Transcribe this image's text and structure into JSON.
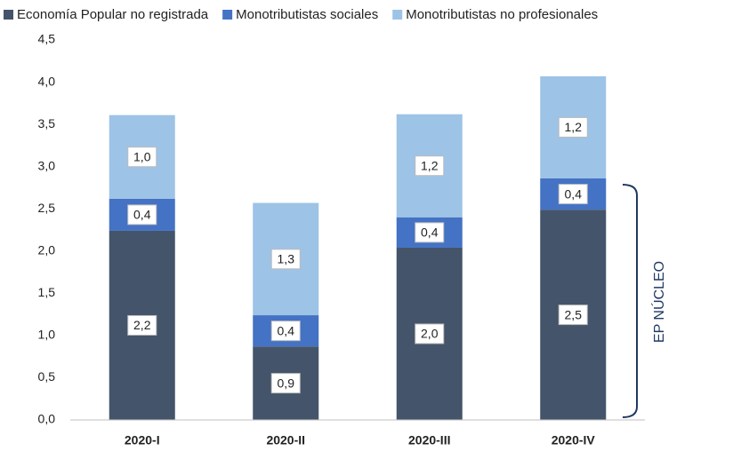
{
  "chart_data": {
    "type": "stacked_bar",
    "categories": [
      "2020-I",
      "2020-II",
      "2020-III",
      "2020-IV"
    ],
    "series": [
      {
        "name": "Economía Popular no registrada",
        "color": "#44546a",
        "values": [
          2.24,
          0.87,
          2.04,
          2.49
        ],
        "value_labels": [
          "2,2",
          "0,9",
          "2,0",
          "2,5"
        ]
      },
      {
        "name": "Monotributistas sociales",
        "color": "#4472c4",
        "values": [
          0.38,
          0.37,
          0.36,
          0.37
        ],
        "value_labels": [
          "0,4",
          "0,4",
          "0,4",
          "0,4"
        ]
      },
      {
        "name": "Monotributistas no profesionales",
        "color": "#9dc3e6",
        "values": [
          0.99,
          1.33,
          1.22,
          1.21
        ],
        "value_labels": [
          "1,0",
          "1,3",
          "1,2",
          "1,2"
        ]
      }
    ],
    "ylim": [
      0,
      4.5
    ],
    "yticks": [
      {
        "value": 0,
        "label": "0,0"
      },
      {
        "value": 0.5,
        "label": "0,5"
      },
      {
        "value": 1,
        "label": "1,0"
      },
      {
        "value": 1.5,
        "label": "1,5"
      },
      {
        "value": 2,
        "label": "2,0"
      },
      {
        "value": 2.5,
        "label": "2,5"
      },
      {
        "value": 3,
        "label": "3,0"
      },
      {
        "value": 3.5,
        "label": "3,5"
      },
      {
        "value": 4,
        "label": "4,0"
      },
      {
        "value": 4.5,
        "label": "4,5"
      }
    ],
    "legend": "top",
    "annotation": "EP NÚCLEO"
  }
}
